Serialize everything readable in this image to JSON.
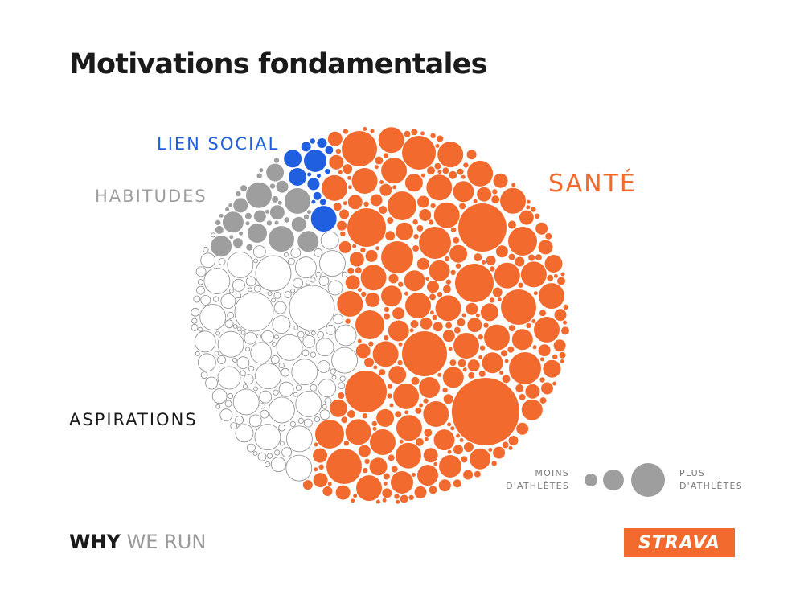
{
  "title": "Motivations fondamentales",
  "chart_data": {
    "type": "packed-bubble",
    "title": "Motivations fondamentales",
    "categories": [
      {
        "name": "SANTÉ",
        "color": "#f26a2e",
        "share_pct": 62
      },
      {
        "name": "ASPIRATIONS",
        "color": "#ffffff",
        "share_pct": 27
      },
      {
        "name": "HABITUDES",
        "color": "#9e9e9e",
        "share_pct": 7
      },
      {
        "name": "LIEN SOCIAL",
        "color": "#1f5fe0",
        "share_pct": 4
      }
    ],
    "size_legend": {
      "min_label": "MOINS\nD'ATHLÈTES",
      "max_label": "PLUS\nD'ATHLÈTES"
    }
  },
  "labels": {
    "sante": "SANTÉ",
    "lien_social": "LIEN SOCIAL",
    "habitudes": "HABITUDES",
    "aspirations": "ASPIRATIONS"
  },
  "legend": {
    "moins_line1": "MOINS",
    "moins_line2": "D'ATHLÈTES",
    "plus_line1": "PLUS",
    "plus_line2": "D'ATHLÈTES",
    "color": "#9e9e9e"
  },
  "footer": {
    "why": "WHY",
    "we_run": "WE RUN"
  },
  "logo": {
    "text": "STRAVA",
    "color": "#f26a2e"
  },
  "colors": {
    "sante": "#f26a2e",
    "lien_social": "#1f5fe0",
    "habitudes": "#9e9e9e",
    "aspirations": "#ffffff",
    "text": "#1a1a1a"
  }
}
